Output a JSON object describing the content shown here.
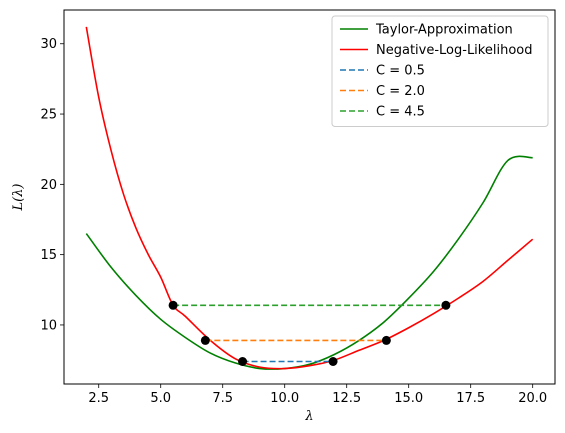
{
  "chart_data": {
    "type": "line",
    "title": "",
    "xlabel": "λ",
    "ylabel": "L(λ)",
    "xlim": [
      1.1,
      20.9
    ],
    "ylim": [
      5.8,
      32.4
    ],
    "xticks": [
      2.5,
      5.0,
      7.5,
      10.0,
      12.5,
      15.0,
      17.5,
      20.0
    ],
    "xtick_labels": [
      "2.5",
      "5.0",
      "7.5",
      "10.0",
      "12.5",
      "15.0",
      "17.5",
      "20.0"
    ],
    "yticks": [
      10,
      15,
      20,
      25,
      30
    ],
    "ytick_labels": [
      "10",
      "15",
      "20",
      "25",
      "30"
    ],
    "grid": false,
    "legend_position": "top-right",
    "series": [
      {
        "name": "Taylor-Approximation",
        "color": "#008000",
        "style": "solid",
        "x": [
          2,
          3,
          4,
          5,
          6,
          7,
          8,
          9,
          10,
          11,
          12,
          13,
          14,
          15,
          16,
          17,
          18,
          19,
          20
        ],
        "y": [
          16.5,
          14.1,
          12.1,
          10.4,
          9.1,
          8.0,
          7.3,
          6.9,
          6.9,
          7.2,
          7.9,
          8.9,
          10.2,
          11.9,
          13.8,
          16.1,
          18.7,
          21.7,
          21.9
        ]
      },
      {
        "name": "Negative-Log-Likelihood",
        "color": "#ff0000",
        "style": "solid",
        "x": [
          2,
          2.5,
          3,
          3.5,
          4,
          4.5,
          5,
          5.5,
          6,
          7,
          8,
          9,
          10,
          11,
          12,
          13,
          14,
          15,
          16,
          17,
          18,
          19,
          20
        ],
        "y": [
          31.2,
          26.2,
          22.4,
          19.3,
          16.9,
          15.0,
          13.4,
          11.4,
          10.6,
          8.9,
          7.6,
          7.0,
          6.9,
          7.1,
          7.5,
          8.2,
          8.9,
          9.8,
          10.8,
          11.9,
          13.1,
          14.6,
          16.1
        ]
      },
      {
        "name": "C = 0.5",
        "color": "#1f77b4",
        "style": "dashed",
        "x": [
          8.3,
          11.95
        ],
        "y": [
          7.4,
          7.4
        ]
      },
      {
        "name": "C = 2.0",
        "color": "#ff7f0e",
        "style": "dashed",
        "x": [
          6.8,
          14.1
        ],
        "y": [
          8.9,
          8.9
        ]
      },
      {
        "name": "C = 4.5",
        "color": "#2ca02c",
        "style": "dashed",
        "x": [
          5.5,
          16.5
        ],
        "y": [
          11.4,
          11.4
        ]
      }
    ],
    "markers": {
      "color": "#000000",
      "x": [
        8.3,
        11.95,
        6.8,
        14.1,
        5.5,
        16.5
      ],
      "y": [
        7.4,
        7.4,
        8.9,
        8.9,
        11.4,
        11.4
      ]
    }
  }
}
